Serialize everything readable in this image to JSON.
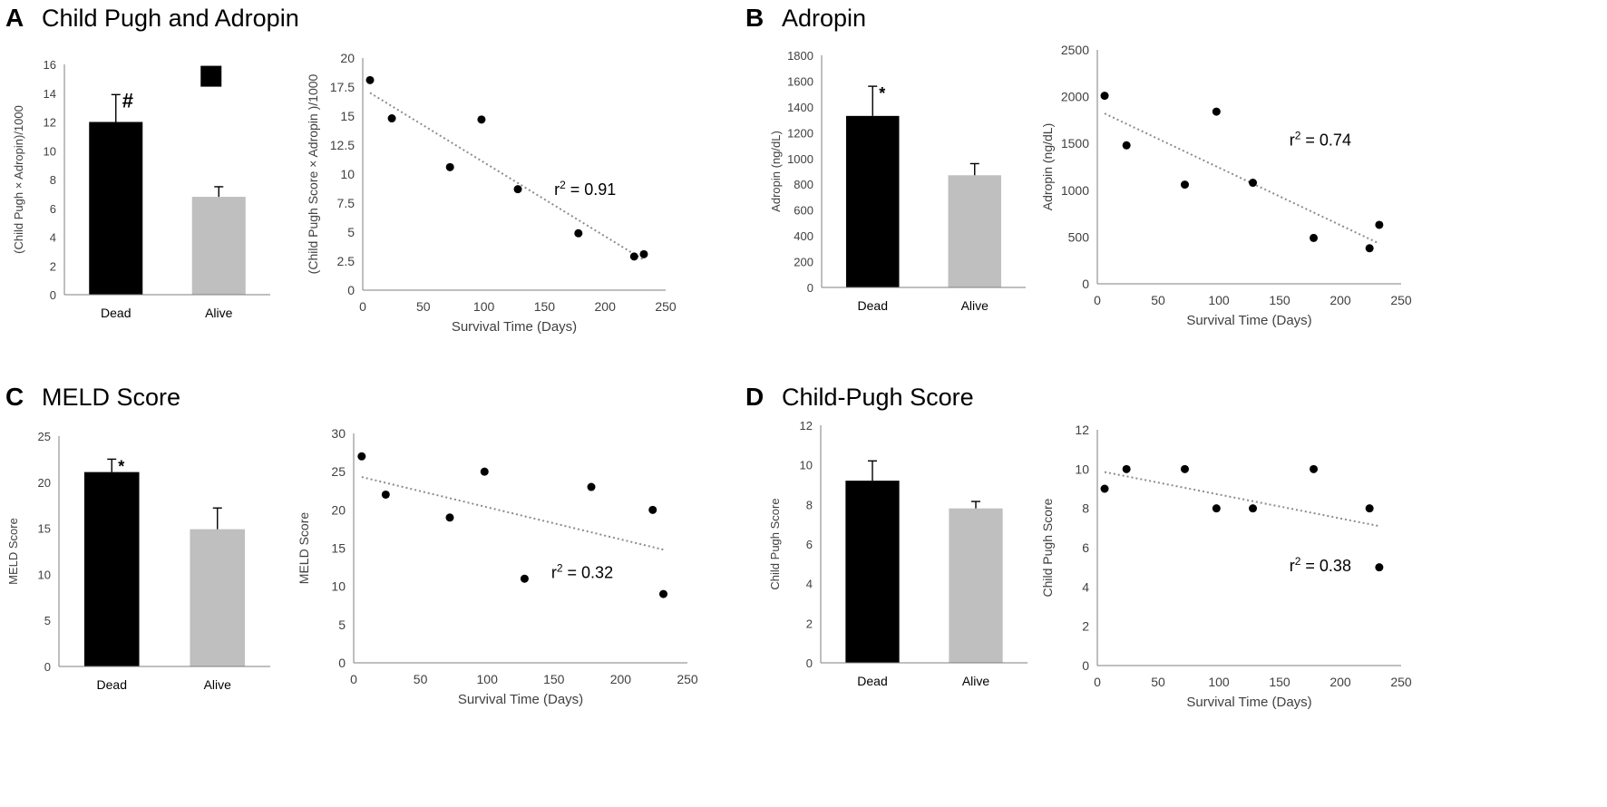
{
  "panels": [
    {
      "letter": "A",
      "title": "Child Pugh and Adropin"
    },
    {
      "letter": "B",
      "title": "Adropin"
    },
    {
      "letter": "C",
      "title": "MELD Score"
    },
    {
      "letter": "D",
      "title": "Child-Pugh Score"
    }
  ],
  "colors": {
    "dead_bar": "#000000",
    "alive_bar": "#bfbfbf",
    "trendline": "#8c8c8c",
    "axis": "#7f7f7f",
    "tick_text": "#404040",
    "point": "#000000"
  },
  "chart_data": [
    {
      "id": "A-bar",
      "panel": "A",
      "type": "bar",
      "categories": [
        "Dead",
        "Alive"
      ],
      "values": [
        12.0,
        6.8
      ],
      "errors": [
        1.9,
        0.7
      ],
      "annotations": [
        "#",
        ""
      ],
      "legend_marker": true,
      "ylabel": "(Child Pugh × Adropin)/1000",
      "xlabel": "",
      "ylim": [
        0,
        16
      ],
      "yticks": [
        "0",
        "2",
        "4",
        "6",
        "8",
        "10",
        "12",
        "14",
        "16"
      ]
    },
    {
      "id": "A-scatter",
      "panel": "A",
      "type": "scatter",
      "x": [
        6,
        24,
        72,
        98,
        128,
        178,
        224,
        232
      ],
      "y": [
        18.1,
        14.8,
        10.6,
        14.7,
        8.7,
        4.9,
        2.9,
        3.1
      ],
      "trendline": [
        [
          6,
          17.0
        ],
        [
          232,
          2.6
        ]
      ],
      "annotation": {
        "prefix": "r",
        "sup": "2",
        "suffix": " = 0.91",
        "at": [
          158,
          8.2
        ]
      },
      "xlabel": "Survival Time (Days)",
      "ylabel": "(Child Pugh Score × Adropin )/1000",
      "xlim": [
        0,
        250
      ],
      "ylim": [
        0,
        20
      ],
      "xticks": [
        "0",
        "50",
        "100",
        "150",
        "200",
        "250"
      ],
      "yticks": [
        "0",
        "2.5",
        "5",
        "7.5",
        "10",
        "12.5",
        "15",
        "17.5",
        "20"
      ]
    },
    {
      "id": "B-bar",
      "panel": "B",
      "type": "bar",
      "categories": [
        "Dead",
        "Alive"
      ],
      "values": [
        1330,
        870
      ],
      "errors": [
        230,
        90
      ],
      "annotations": [
        "*",
        ""
      ],
      "ylabel": "Adropin (ng/dL)",
      "xlabel": "",
      "ylim": [
        0,
        1800
      ],
      "yticks": [
        "0",
        "200",
        "400",
        "600",
        "800",
        "1000",
        "1200",
        "1400",
        "1600",
        "1800"
      ]
    },
    {
      "id": "B-scatter",
      "panel": "B",
      "type": "scatter",
      "x": [
        6,
        24,
        72,
        98,
        128,
        178,
        224,
        232
      ],
      "y": [
        2010,
        1480,
        1060,
        1840,
        1080,
        490,
        380,
        630
      ],
      "trendline": [
        [
          6,
          1820
        ],
        [
          232,
          430
        ]
      ],
      "annotation": {
        "prefix": "r",
        "sup": "2",
        "suffix": " = 0.74",
        "at": [
          158,
          1480
        ]
      },
      "xlabel": "Survival  Time (Days)",
      "ylabel": "Adropin (ng/dL)",
      "xlim": [
        0,
        250
      ],
      "ylim": [
        0,
        2500
      ],
      "xticks": [
        "0",
        "50",
        "100",
        "150",
        "200",
        "250"
      ],
      "yticks": [
        "0",
        "500",
        "1000",
        "1500",
        "2000",
        "2500"
      ]
    },
    {
      "id": "C-bar",
      "panel": "C",
      "type": "bar",
      "categories": [
        "Dead",
        "Alive"
      ],
      "values": [
        21.1,
        14.9
      ],
      "errors": [
        1.4,
        2.3
      ],
      "annotations": [
        "*",
        ""
      ],
      "ylabel": "MELD Score",
      "xlabel": "",
      "ylim": [
        0,
        25
      ],
      "yticks": [
        "0",
        "5",
        "10",
        "15",
        "20",
        "25"
      ]
    },
    {
      "id": "C-scatter",
      "panel": "C",
      "type": "scatter",
      "x": [
        6,
        24,
        72,
        98,
        128,
        178,
        224,
        232
      ],
      "y": [
        27,
        22,
        19,
        25,
        11,
        23,
        20,
        9
      ],
      "trendline": [
        [
          6,
          24.3
        ],
        [
          232,
          14.8
        ]
      ],
      "annotation": {
        "prefix": "r",
        "sup": "2",
        "suffix": " = 0.32",
        "at": [
          148,
          11.1
        ]
      },
      "xlabel": "Survival Time (Days)",
      "ylabel": "MELD Score",
      "xlim": [
        0,
        250
      ],
      "ylim": [
        0,
        30
      ],
      "xticks": [
        "0",
        "50",
        "100",
        "150",
        "200",
        "250"
      ],
      "yticks": [
        "0",
        "5",
        "10",
        "15",
        "20",
        "25",
        "30"
      ]
    },
    {
      "id": "D-bar",
      "panel": "D",
      "type": "bar",
      "categories": [
        "Dead",
        "Alive"
      ],
      "values": [
        9.2,
        7.8
      ],
      "errors": [
        1.0,
        0.35
      ],
      "annotations": [
        "",
        ""
      ],
      "ylabel": "Child Pugh Score",
      "xlabel": "",
      "ylim": [
        0,
        12
      ],
      "yticks": [
        "0",
        "2",
        "4",
        "6",
        "8",
        "10",
        "12"
      ]
    },
    {
      "id": "D-scatter",
      "panel": "D",
      "type": "scatter",
      "x": [
        6,
        24,
        72,
        98,
        128,
        178,
        224,
        232
      ],
      "y": [
        9,
        10,
        10,
        8,
        8,
        10,
        8,
        5
      ],
      "trendline": [
        [
          6,
          9.85
        ],
        [
          232,
          7.1
        ]
      ],
      "annotation": {
        "prefix": "r",
        "sup": "2",
        "suffix": " = 0.38",
        "at": [
          158,
          4.8
        ]
      },
      "xlabel": "Survival Time (Days)",
      "ylabel": "Child Pugh Score",
      "xlim": [
        0,
        250
      ],
      "ylim": [
        0,
        12
      ],
      "xticks": [
        "0",
        "50",
        "100",
        "150",
        "200",
        "250"
      ],
      "yticks": [
        "0",
        "2",
        "4",
        "6",
        "8",
        "10",
        "12"
      ]
    }
  ]
}
